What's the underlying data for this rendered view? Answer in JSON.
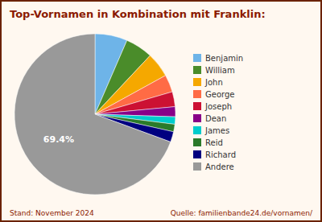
{
  "chart_data": {
    "type": "pie",
    "title": "Top-Vornamen in Kombination mit Franklin:",
    "categories": [
      "Benjamin",
      "William",
      "John",
      "George",
      "Joseph",
      "Dean",
      "James",
      "Reid",
      "Richard",
      "Andere"
    ],
    "values": [
      6.5,
      5.5,
      5.0,
      3.5,
      3.0,
      2.0,
      1.5,
      1.5,
      2.1,
      69.4
    ],
    "value_labels": [
      null,
      null,
      null,
      null,
      null,
      null,
      null,
      null,
      null,
      "69.4%"
    ],
    "colors": [
      "#6EB4E8",
      "#4A8C2A",
      "#F5A800",
      "#FF6B45",
      "#CC1133",
      "#880088",
      "#00CCCC",
      "#2A7A2A",
      "#000080",
      "#999999"
    ],
    "legend": "right",
    "annotations": [
      "Stand: November 2024",
      "Quelle: familienbande24.de/vornamen/"
    ]
  }
}
